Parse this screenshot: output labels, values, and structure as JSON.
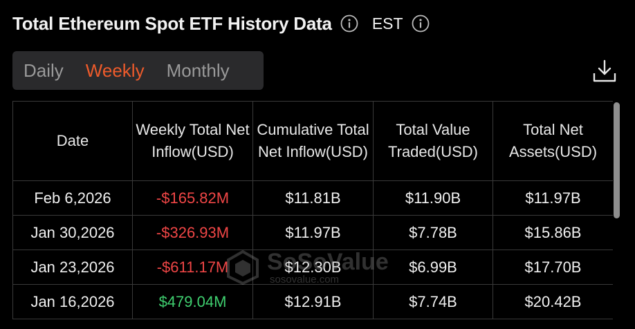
{
  "header": {
    "title": "Total Ethereum Spot ETF History Data",
    "timezone": "EST"
  },
  "icons": {
    "info": "info-icon",
    "download": "download-icon"
  },
  "tabs": [
    {
      "label": "Daily",
      "active": false
    },
    {
      "label": "Weekly",
      "active": true
    },
    {
      "label": "Monthly",
      "active": false
    }
  ],
  "table": {
    "columns": [
      "Weekly Total Net Inflow(USD)",
      "Cumulative Total Net Inflow(USD)",
      "Total Value Traded(USD)",
      "Total Net Assets(USD)"
    ],
    "date_header": "Date",
    "rows": [
      {
        "date": "Feb 6,2026",
        "inflow": "-$165.82M",
        "cumulative": "$11.81B",
        "traded": "$11.90B",
        "assets": "$11.97B"
      },
      {
        "date": "Jan 30,2026",
        "inflow": "-$326.93M",
        "cumulative": "$11.97B",
        "traded": "$7.78B",
        "assets": "$15.86B"
      },
      {
        "date": "Jan 23,2026",
        "inflow": "-$611.17M",
        "cumulative": "$12.30B",
        "traded": "$6.99B",
        "assets": "$17.70B"
      },
      {
        "date": "Jan 16,2026",
        "inflow": "$479.04M",
        "cumulative": "$12.91B",
        "traded": "$7.74B",
        "assets": "$20.42B"
      }
    ]
  },
  "watermark": {
    "brand": "SoSoValue",
    "url": "sosovalue.com"
  },
  "colors": {
    "accent": "#ee5b2b",
    "negative": "#f04646",
    "positive": "#3fcf6f",
    "background": "#000000",
    "tab_bar": "#2a2a2c"
  }
}
